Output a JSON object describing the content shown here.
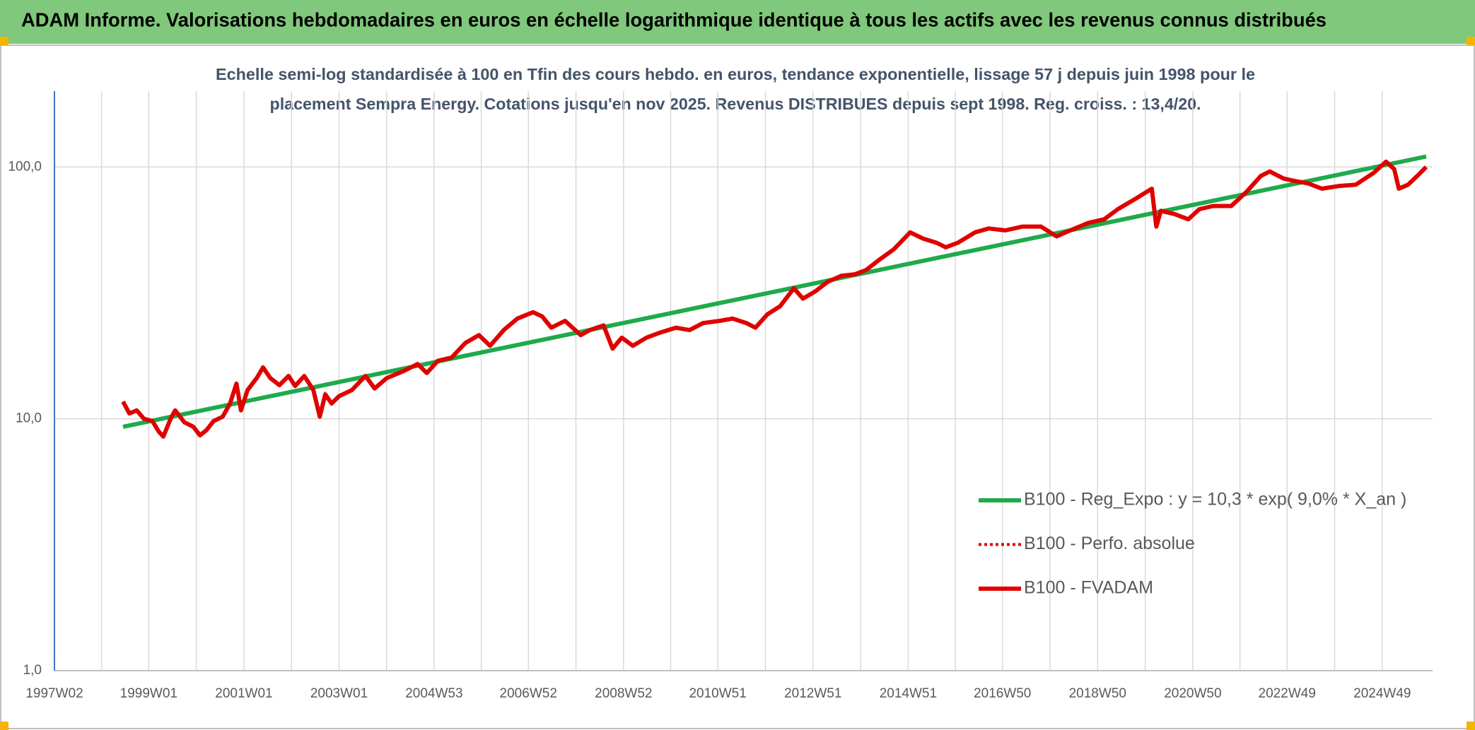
{
  "page_title": "ADAM Informe. Valorisations hebdomadaires en euros en échelle logarithmique identique à tous les actifs avec les revenus connus distribués",
  "chart_data": {
    "type": "line",
    "title": [
      "Echelle semi-log standardisée à 100 en Tfin des cours hebdo. en euros, tendance exponentielle, lissage 57 j depuis juin 1998 pour le",
      "placement Sempra Energy. Cotations jusqu'en nov 2025. Revenus DISTRIBUES depuis sept 1998. Reg. croiss. : 13,4/20."
    ],
    "log_scale": true,
    "grid": true,
    "legend": "right",
    "xlim": [
      "1997W02",
      "2025W52"
    ],
    "xticks": [
      "1997W02",
      "1999W01",
      "2001W01",
      "2003W01",
      "2004W53",
      "2006W52",
      "2008W52",
      "2010W51",
      "2012W51",
      "2014W51",
      "2016W50",
      "2018W50",
      "2020W50",
      "2022W49",
      "2024W49"
    ],
    "ylim": [
      1,
      200
    ],
    "yticks": [
      {
        "value": 1,
        "label": "1,0"
      },
      {
        "value": 10,
        "label": "10,0"
      },
      {
        "value": 100,
        "label": "100,0"
      }
    ],
    "x": [
      "1998W25",
      "1998W32",
      "1998W40",
      "1998W48",
      "1999W05",
      "1999W12",
      "1999W17",
      "1999W25",
      "1999W30",
      "1999W40",
      "1999W50",
      "2000W05",
      "2000W12",
      "2000W20",
      "2000W30",
      "2000W38",
      "2000W45",
      "2000W50",
      "2001W05",
      "2001W15",
      "2001W22",
      "2001W30",
      "2001W40",
      "2001W50",
      "2002W05",
      "2002W15",
      "2002W25",
      "2002W32",
      "2002W38",
      "2002W45",
      "2003W01",
      "2003W15",
      "2003W30",
      "2003W40",
      "2004W01",
      "2004W20",
      "2004W35",
      "2004W45",
      "2005W05",
      "2005W20",
      "2005W35",
      "2005W50",
      "2006W10",
      "2006W25",
      "2006W40",
      "2007W05",
      "2007W15",
      "2007W25",
      "2007W40",
      "2008W05",
      "2008W15",
      "2008W30",
      "2008W40",
      "2008W50",
      "2009W10",
      "2009W25",
      "2009W40",
      "2010W05",
      "2010W20",
      "2010W35",
      "2011W01",
      "2011W15",
      "2011W30",
      "2011W40",
      "2012W01",
      "2012W15",
      "2012W30",
      "2012W40",
      "2013W01",
      "2013W15",
      "2013W30",
      "2013W45",
      "2014W05",
      "2014W20",
      "2014W35",
      "2015W01",
      "2015W15",
      "2015W30",
      "2015W40",
      "2016W01",
      "2016W20",
      "2016W35",
      "2017W01",
      "2017W20",
      "2017W40",
      "2018W05",
      "2018W20",
      "2018W40",
      "2019W05",
      "2019W20",
      "2019W40",
      "2020W05",
      "2020W10",
      "2020W15",
      "2020W30",
      "2020W45",
      "2021W05",
      "2021W20",
      "2021W40",
      "2022W05",
      "2022W20",
      "2022W30",
      "2022W45",
      "2023W05",
      "2023W20",
      "2023W35",
      "2024W01",
      "2024W20",
      "2024W40",
      "2025W01",
      "2025W10",
      "2025W15",
      "2025W25",
      "2025W35",
      "2025W45"
    ],
    "series": [
      {
        "name": "B100 - Reg_Expo : y = 10,3 * exp( 9,0% *  X_an )",
        "color": "#1faa4b",
        "style": "solid",
        "x": [
          "1998W25",
          "2025W45"
        ],
        "values": [
          9.3,
          110
        ]
      },
      {
        "name": "B100 - Perfo. absolue",
        "color": "#e00000",
        "style": "dotted",
        "values": [
          11.7,
          10.5,
          10.8,
          10.0,
          9.8,
          8.9,
          8.5,
          10.0,
          10.8,
          9.7,
          9.3,
          8.6,
          9.0,
          9.8,
          10.2,
          11.5,
          13.8,
          10.8,
          13.0,
          14.5,
          16.0,
          14.5,
          13.6,
          14.8,
          13.5,
          14.8,
          13.0,
          10.2,
          12.5,
          11.5,
          12.3,
          13.0,
          14.8,
          13.2,
          14.5,
          15.5,
          16.5,
          15.2,
          17.0,
          17.5,
          20.0,
          21.5,
          19.5,
          22.5,
          25.0,
          26.5,
          25.5,
          23.0,
          24.5,
          21.5,
          22.5,
          23.5,
          19.0,
          21.0,
          19.5,
          21.0,
          22.0,
          23.0,
          22.5,
          24.0,
          24.5,
          25.0,
          24.0,
          23.0,
          26.0,
          28.0,
          33.0,
          30.0,
          32.0,
          35.0,
          37.0,
          37.5,
          39.0,
          43.0,
          47.0,
          55.0,
          52.0,
          50.0,
          48.0,
          50.0,
          55.0,
          57.0,
          56.0,
          58.0,
          58.0,
          53.0,
          56.0,
          60.0,
          62.0,
          68.0,
          75.0,
          82.0,
          58.0,
          67.0,
          65.0,
          62.0,
          68.0,
          70.0,
          70.0,
          80.0,
          92.0,
          96.0,
          90.0,
          88.0,
          86.0,
          82.0,
          84.0,
          85.0,
          95.0,
          105.0,
          98.0,
          82.0,
          85.0,
          92.0,
          100.0
        ]
      },
      {
        "name": "B100 - FVADAM",
        "color": "#e00000",
        "style": "solid",
        "values": [
          11.7,
          10.5,
          10.8,
          10.0,
          9.8,
          8.9,
          8.5,
          10.0,
          10.8,
          9.7,
          9.3,
          8.6,
          9.0,
          9.8,
          10.2,
          11.5,
          13.8,
          10.8,
          13.0,
          14.5,
          16.0,
          14.5,
          13.6,
          14.8,
          13.5,
          14.8,
          13.0,
          10.2,
          12.5,
          11.5,
          12.3,
          13.0,
          14.8,
          13.2,
          14.5,
          15.5,
          16.5,
          15.2,
          17.0,
          17.5,
          20.0,
          21.5,
          19.5,
          22.5,
          25.0,
          26.5,
          25.5,
          23.0,
          24.5,
          21.5,
          22.5,
          23.5,
          19.0,
          21.0,
          19.5,
          21.0,
          22.0,
          23.0,
          22.5,
          24.0,
          24.5,
          25.0,
          24.0,
          23.0,
          26.0,
          28.0,
          33.0,
          30.0,
          32.0,
          35.0,
          37.0,
          37.5,
          39.0,
          43.0,
          47.0,
          55.0,
          52.0,
          50.0,
          48.0,
          50.0,
          55.0,
          57.0,
          56.0,
          58.0,
          58.0,
          53.0,
          56.0,
          60.0,
          62.0,
          68.0,
          75.0,
          82.0,
          58.0,
          67.0,
          65.0,
          62.0,
          68.0,
          70.0,
          70.0,
          80.0,
          92.0,
          96.0,
          90.0,
          88.0,
          86.0,
          82.0,
          84.0,
          85.0,
          95.0,
          105.0,
          98.0,
          82.0,
          85.0,
          92.0,
          100.0
        ]
      }
    ]
  }
}
